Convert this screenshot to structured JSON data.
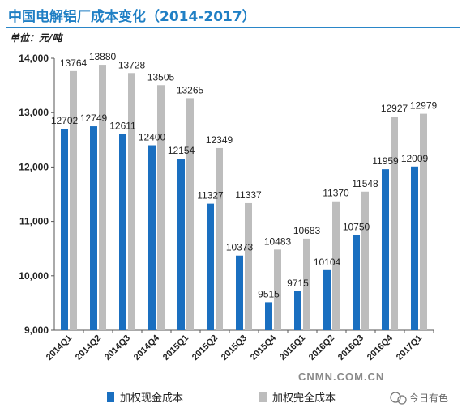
{
  "title": "中国电解铝厂成本变化（2014-2017）",
  "unit_label": "单位：元/吨",
  "watermark": "CNMN.COM.CN",
  "watermark2": "今日有色",
  "chart_data": {
    "type": "bar",
    "title": "中国电解铝厂成本变化（2014-2017）",
    "xlabel": "",
    "ylabel": "单位：元/吨",
    "ylim": [
      9000,
      14000
    ],
    "yticks": [
      "9,000",
      "10,000",
      "11,000",
      "12,000",
      "13,000",
      "14,000"
    ],
    "ytick_values": [
      9000,
      10000,
      11000,
      12000,
      13000,
      14000
    ],
    "grid": false,
    "legend_position": "bottom",
    "categories": [
      "2014Q1",
      "2014Q2",
      "2014Q3",
      "2014Q4",
      "2015Q1",
      "2015Q2",
      "2015Q3",
      "2015Q4",
      "2016Q1",
      "2016Q2",
      "2016Q3",
      "2016Q4",
      "2017Q1"
    ],
    "series": [
      {
        "name": "加权现金成本",
        "color": "#1a6fc0",
        "values": [
          12702,
          12749,
          12611,
          12400,
          12154,
          11327,
          10373,
          9515,
          9715,
          10104,
          10750,
          11959,
          12009
        ]
      },
      {
        "name": "加权完全成本",
        "color": "#bdbdbd",
        "values": [
          13764,
          13880,
          13728,
          13505,
          13265,
          12349,
          11337,
          10483,
          10683,
          11370,
          11548,
          12927,
          12979
        ]
      }
    ]
  }
}
